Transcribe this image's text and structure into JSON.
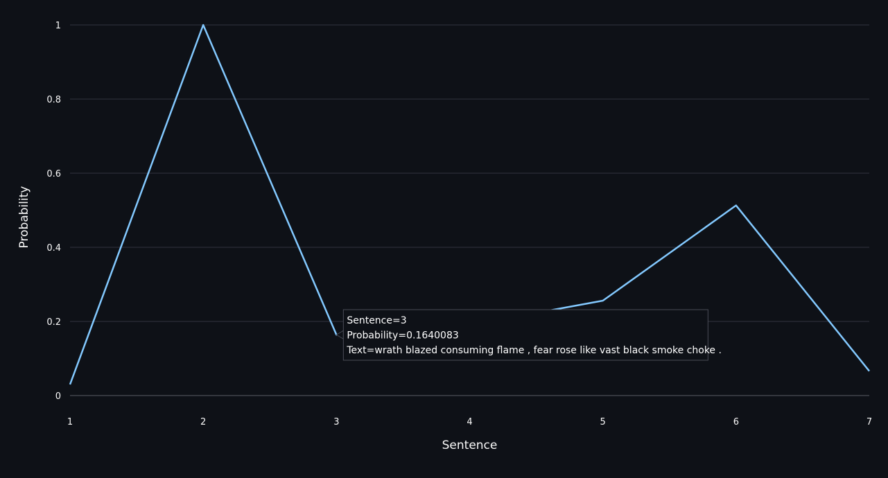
{
  "chart_data": {
    "type": "line",
    "xlabel": "Sentence",
    "ylabel": "Probability",
    "xlim": [
      1,
      7
    ],
    "ylim": [
      0,
      1
    ],
    "x_ticks": [
      "1",
      "2",
      "3",
      "4",
      "5",
      "6",
      "7"
    ],
    "y_ticks": [
      {
        "value": 0,
        "label": "0"
      },
      {
        "value": 0.2,
        "label": "0.2"
      },
      {
        "value": 0.4,
        "label": "0.4"
      },
      {
        "value": 0.6,
        "label": "0.6"
      },
      {
        "value": 0.8,
        "label": "0.8"
      },
      {
        "value": 1,
        "label": "1"
      }
    ],
    "grid": true,
    "series": [
      {
        "x": [
          1,
          2,
          3,
          4,
          5,
          6,
          7
        ],
        "y": [
          0.03,
          1.0,
          0.1640083,
          0.19,
          0.256,
          0.513,
          0.066
        ]
      }
    ],
    "hover": {
      "point_index": 2,
      "lines": [
        "Sentence=3",
        "Probability=0.1640083",
        "Text=wrath blazed consuming flame , fear rose like vast black smoke choke ."
      ]
    }
  },
  "colors": {
    "background": "#0e1117",
    "line": "#83c9ff",
    "grid": "#31333f",
    "text": "#fafafa",
    "tooltip_bg": "#0e1117",
    "tooltip_border": "#4a4d57"
  }
}
